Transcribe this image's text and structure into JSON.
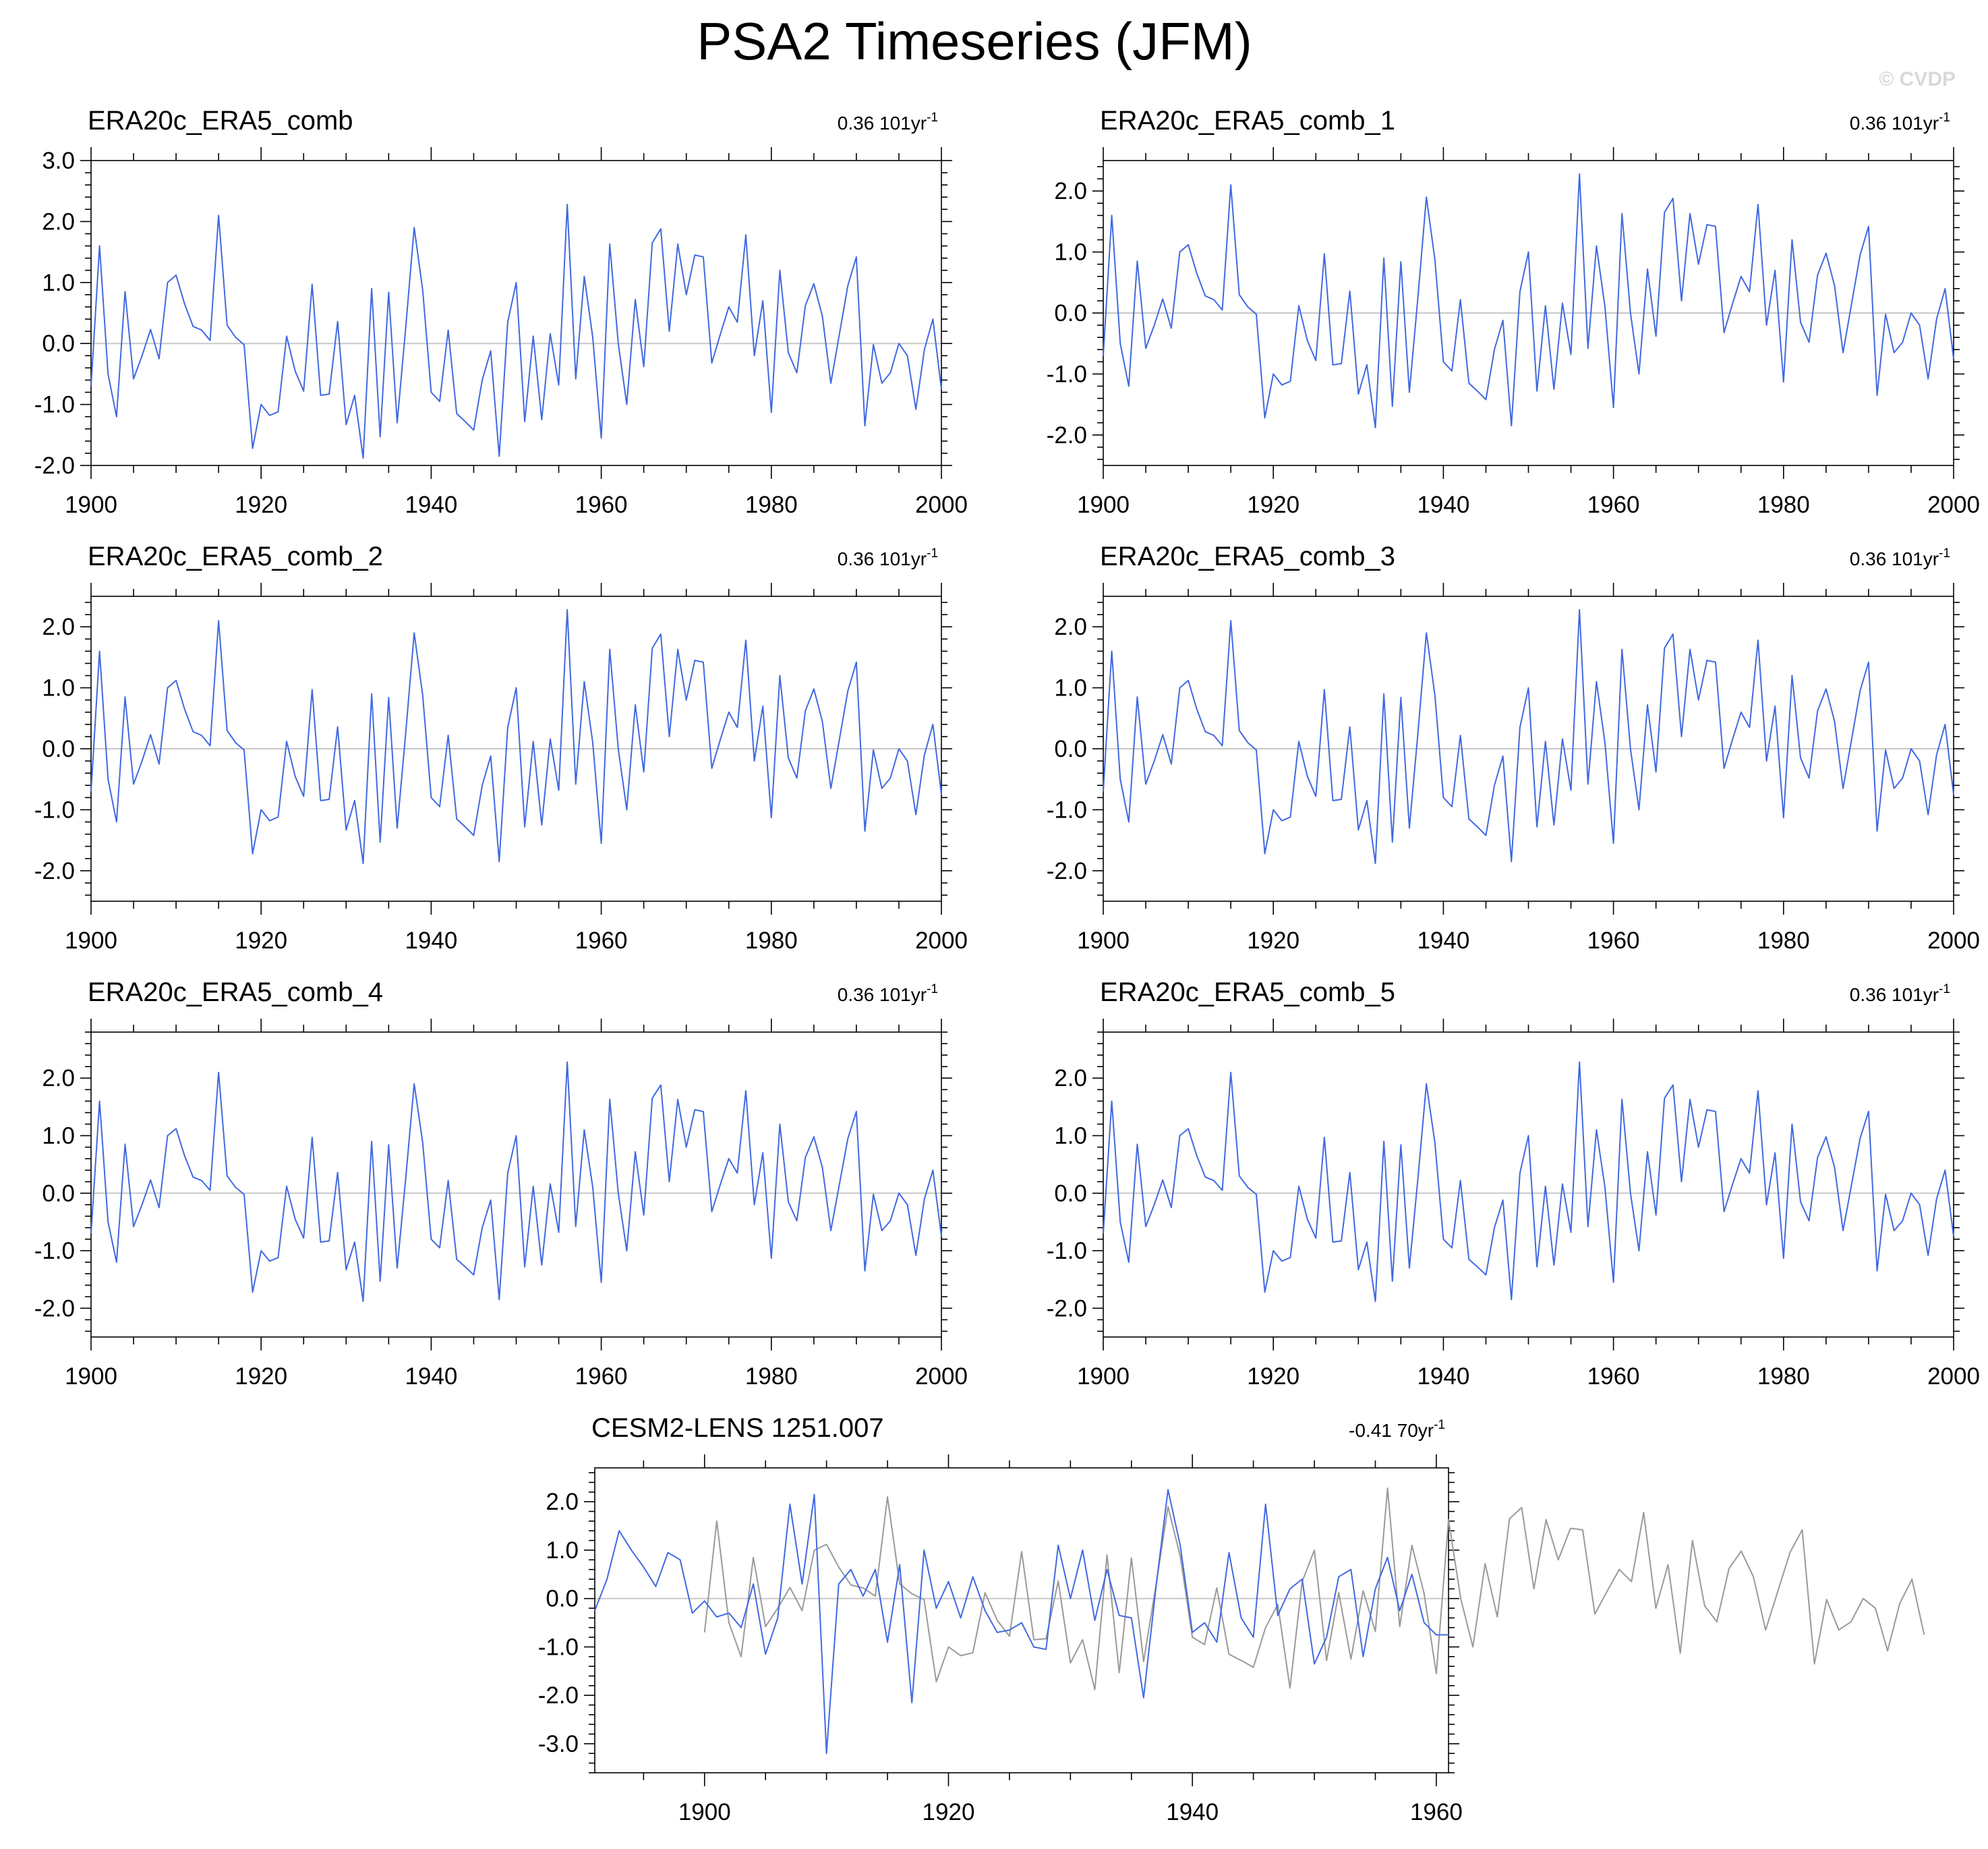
{
  "figure": {
    "title": "PSA2 Timeseries (JFM)",
    "copyright": "© CVDP"
  },
  "colors": {
    "series": "#4169e1",
    "observed_overlay": "#9a9a9a",
    "zero_line": "#c8c8c8",
    "axis": "#000000"
  },
  "chart_data": [
    {
      "type": "line",
      "title": "ERA20c_ERA5_comb",
      "trend": {
        "value": "0.36",
        "period": "101yr",
        "exponent": "-1"
      },
      "xlim": [
        1900,
        2000
      ],
      "ylim": [
        -2.0,
        3.0
      ],
      "yticks": [
        -2.0,
        -1.0,
        0.0,
        1.0,
        2.0,
        3.0
      ],
      "ytick_labels": [
        "-2.0",
        "-1.0",
        "0.0",
        "1.0",
        "2.0",
        "3.0"
      ],
      "xticks": [
        1900,
        1920,
        1940,
        1960,
        1980,
        2000
      ],
      "xtick_labels": [
        "1900",
        "1920",
        "1940",
        "1960",
        "1980",
        "2000"
      ],
      "series_ref": "obs"
    },
    {
      "type": "line",
      "title": "ERA20c_ERA5_comb_1",
      "trend": {
        "value": "0.36",
        "period": "101yr",
        "exponent": "-1"
      },
      "xlim": [
        1900,
        2000
      ],
      "ylim": [
        -2.5,
        2.5
      ],
      "yticks": [
        -2.0,
        -1.0,
        0.0,
        1.0,
        2.0
      ],
      "ytick_labels": [
        "-2.0",
        "-1.0",
        "0.0",
        "1.0",
        "2.0"
      ],
      "xticks": [
        1900,
        1920,
        1940,
        1960,
        1980,
        2000
      ],
      "xtick_labels": [
        "1900",
        "1920",
        "1940",
        "1960",
        "1980",
        "2000"
      ],
      "series_ref": "obs"
    },
    {
      "type": "line",
      "title": "ERA20c_ERA5_comb_2",
      "trend": {
        "value": "0.36",
        "period": "101yr",
        "exponent": "-1"
      },
      "xlim": [
        1900,
        2000
      ],
      "ylim": [
        -2.5,
        2.5
      ],
      "yticks": [
        -2.0,
        -1.0,
        0.0,
        1.0,
        2.0
      ],
      "ytick_labels": [
        "-2.0",
        "-1.0",
        "0.0",
        "1.0",
        "2.0"
      ],
      "xticks": [
        1900,
        1920,
        1940,
        1960,
        1980,
        2000
      ],
      "xtick_labels": [
        "1900",
        "1920",
        "1940",
        "1960",
        "1980",
        "2000"
      ],
      "series_ref": "obs"
    },
    {
      "type": "line",
      "title": "ERA20c_ERA5_comb_3",
      "trend": {
        "value": "0.36",
        "period": "101yr",
        "exponent": "-1"
      },
      "xlim": [
        1900,
        2000
      ],
      "ylim": [
        -2.5,
        2.5
      ],
      "yticks": [
        -2.0,
        -1.0,
        0.0,
        1.0,
        2.0
      ],
      "ytick_labels": [
        "-2.0",
        "-1.0",
        "0.0",
        "1.0",
        "2.0"
      ],
      "xticks": [
        1900,
        1920,
        1940,
        1960,
        1980,
        2000
      ],
      "xtick_labels": [
        "1900",
        "1920",
        "1940",
        "1960",
        "1980",
        "2000"
      ],
      "series_ref": "obs"
    },
    {
      "type": "line",
      "title": "ERA20c_ERA5_comb_4",
      "trend": {
        "value": "0.36",
        "period": "101yr",
        "exponent": "-1"
      },
      "xlim": [
        1900,
        2000
      ],
      "ylim": [
        -2.5,
        2.8
      ],
      "yticks": [
        -2.0,
        -1.0,
        0.0,
        1.0,
        2.0
      ],
      "ytick_labels": [
        "-2.0",
        "-1.0",
        "0.0",
        "1.0",
        "2.0"
      ],
      "xticks": [
        1900,
        1920,
        1940,
        1960,
        1980,
        2000
      ],
      "xtick_labels": [
        "1900",
        "1920",
        "1940",
        "1960",
        "1980",
        "2000"
      ],
      "series_ref": "obs"
    },
    {
      "type": "line",
      "title": "ERA20c_ERA5_comb_5",
      "trend": {
        "value": "0.36",
        "period": "101yr",
        "exponent": "-1"
      },
      "xlim": [
        1900,
        2000
      ],
      "ylim": [
        -2.5,
        2.8
      ],
      "yticks": [
        -2.0,
        -1.0,
        0.0,
        1.0,
        2.0
      ],
      "ytick_labels": [
        "-2.0",
        "-1.0",
        "0.0",
        "1.0",
        "2.0"
      ],
      "xticks": [
        1900,
        1920,
        1940,
        1960,
        1980,
        2000
      ],
      "xtick_labels": [
        "1900",
        "1920",
        "1940",
        "1960",
        "1980",
        "2000"
      ],
      "series_ref": "obs"
    },
    {
      "type": "line",
      "title": "CESM2-LENS 1251.007",
      "trend": {
        "value": "-0.41",
        "period": "70yr",
        "exponent": "-1"
      },
      "xlim": [
        1891,
        1961
      ],
      "ylim": [
        -3.6,
        2.7
      ],
      "yticks": [
        -3.0,
        -2.0,
        -1.0,
        0.0,
        1.0,
        2.0
      ],
      "ytick_labels": [
        "-3.0",
        "-2.0",
        "-1.0",
        "0.0",
        "1.0",
        "2.0"
      ],
      "xticks": [
        1900,
        1920,
        1940,
        1960
      ],
      "xtick_labels": [
        "1900",
        "1920",
        "1940",
        "1960"
      ],
      "series_ref": "model",
      "overlay_ref": "obs"
    }
  ],
  "series_values": {
    "obs": {
      "x_start": 1900,
      "values": [
        -0.7,
        1.6,
        -0.5,
        -1.2,
        0.85,
        -0.58,
        -0.2,
        0.23,
        -0.25,
        1.0,
        1.12,
        0.65,
        0.28,
        0.22,
        0.05,
        2.1,
        0.3,
        0.1,
        -0.02,
        -1.72,
        -1.0,
        -1.18,
        -1.12,
        0.12,
        -0.45,
        -0.78,
        0.97,
        -0.85,
        -0.83,
        0.36,
        -1.33,
        -0.85,
        -1.88,
        0.9,
        -1.53,
        0.84,
        -1.3,
        0.25,
        1.9,
        0.88,
        -0.8,
        -0.95,
        0.22,
        -1.15,
        -1.28,
        -1.42,
        -0.6,
        -0.12,
        -1.85,
        0.35,
        1.0,
        -1.28,
        0.12,
        -1.25,
        0.16,
        -0.68,
        2.28,
        -0.58,
        1.1,
        0.1,
        -1.55,
        1.63,
        0.0,
        -1.0,
        0.72,
        -0.38,
        1.65,
        1.88,
        0.2,
        1.63,
        0.8,
        1.45,
        1.42,
        -0.32,
        0.15,
        0.6,
        0.35,
        1.78,
        -0.2,
        0.7,
        -1.13,
        1.2,
        -0.15,
        -0.48,
        0.62,
        0.98,
        0.45,
        -0.65,
        0.15,
        0.95,
        1.42,
        -1.35,
        -0.02,
        -0.65,
        -0.48,
        0.0,
        -0.2,
        -1.08,
        -0.1,
        0.4,
        -0.75
      ]
    },
    "model": {
      "x_start": 1891,
      "values": [
        -0.25,
        0.4,
        1.4,
        1.0,
        0.65,
        0.25,
        0.95,
        0.8,
        -0.3,
        -0.05,
        -0.38,
        -0.3,
        -0.6,
        0.3,
        -1.15,
        -0.4,
        1.95,
        0.3,
        2.15,
        -3.2,
        0.3,
        0.6,
        0.05,
        0.6,
        -0.9,
        0.7,
        -2.15,
        1.0,
        -0.2,
        0.35,
        -0.4,
        0.45,
        -0.25,
        -0.7,
        -0.65,
        -0.5,
        -1.0,
        -1.05,
        1.1,
        0.0,
        1.0,
        -0.45,
        0.6,
        -0.35,
        -0.4,
        -2.05,
        0.2,
        2.25,
        1.1,
        -0.7,
        -0.5,
        -0.9,
        0.95,
        -0.4,
        -0.8,
        1.95,
        -0.35,
        0.2,
        0.4,
        -1.35,
        -0.8,
        0.45,
        0.6,
        -1.2,
        0.2,
        0.85,
        -0.25,
        0.5,
        -0.5,
        -0.75,
        -0.75
      ]
    }
  }
}
